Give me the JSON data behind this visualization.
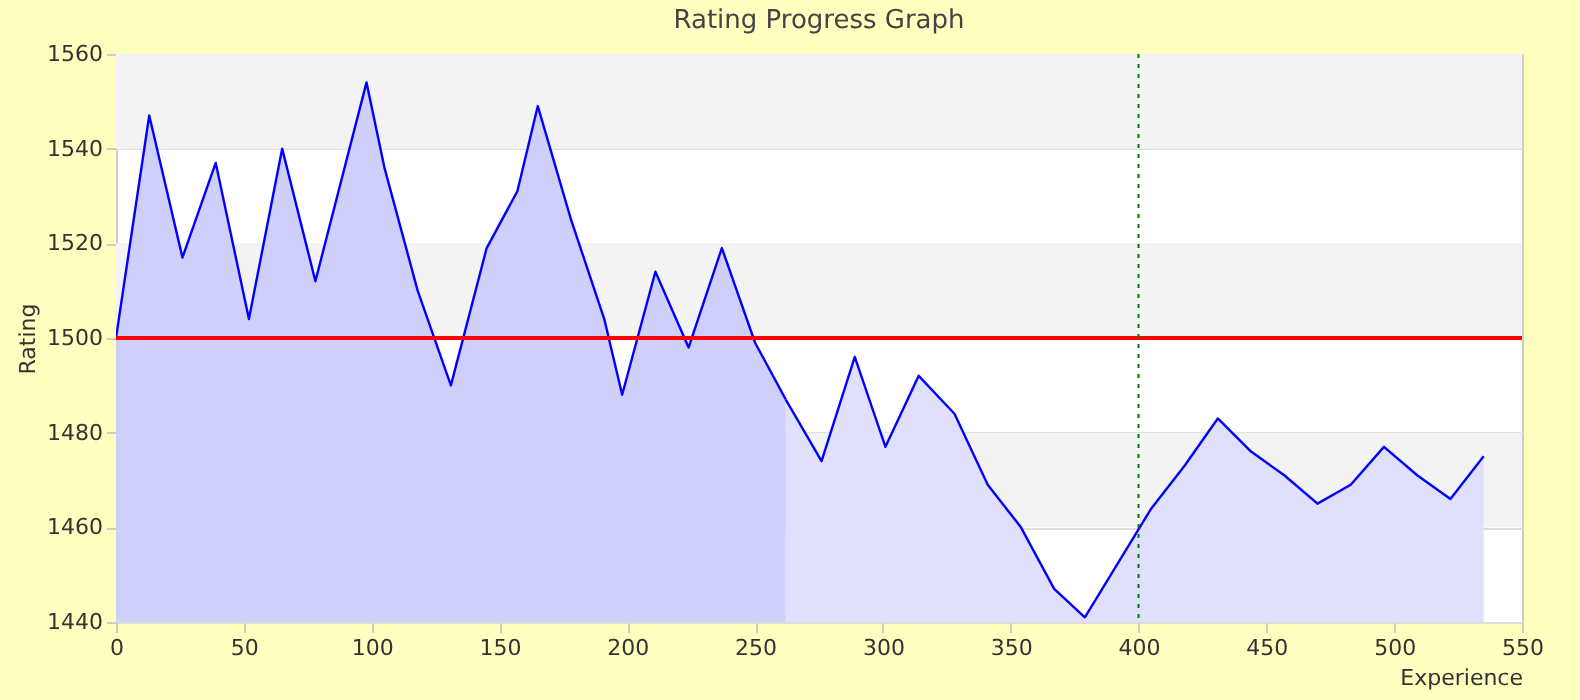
{
  "chart_data": {
    "type": "area",
    "title": "Rating Progress Graph",
    "xlabel": "Experience",
    "ylabel": "Rating",
    "series": [
      {
        "color": "#cfcffc",
        "x": [
          0,
          13,
          26,
          39,
          52,
          65,
          78,
          98,
          105,
          118,
          131,
          145,
          157,
          165,
          178,
          191,
          198,
          211,
          224,
          237,
          250,
          262
        ],
        "values": [
          1500,
          1547,
          1517,
          1537,
          1504,
          1540,
          1512,
          1554,
          1536,
          1510,
          1490,
          1519,
          1531,
          1549,
          1525,
          1504,
          1488,
          1514,
          1498,
          1519,
          1499,
          1487
        ]
      },
      {
        "color": "#e0e0fc",
        "x": [
          262,
          276,
          289,
          301,
          314,
          328,
          341,
          354,
          367,
          379,
          405,
          418,
          431,
          444,
          457,
          470,
          483,
          496,
          509,
          522,
          535
        ],
        "values": [
          1487,
          1474,
          1496,
          1477,
          1492,
          1484,
          1469,
          1460,
          1447,
          1441,
          1464,
          1473,
          1483,
          1476,
          1471,
          1465,
          1469,
          1477,
          1471,
          1466,
          1475
        ]
      }
    ],
    "xlim": [
      0,
      550
    ],
    "xticks": [
      0,
      50,
      100,
      150,
      200,
      250,
      300,
      350,
      400,
      450,
      500,
      550
    ],
    "ylim": [
      1440,
      1560
    ],
    "yticks": [
      1440,
      1460,
      1480,
      1500,
      1520,
      1540,
      1560
    ],
    "grid": "y",
    "legend": false,
    "marker": "none",
    "line_style": "solid",
    "bands": [
      {
        "axis": "y",
        "from": 1540,
        "to": 1560,
        "color": "#f3f3f3"
      },
      {
        "axis": "y",
        "from": 1500,
        "to": 1520,
        "color": "#f3f3f3"
      },
      {
        "axis": "y",
        "from": 1460,
        "to": 1480,
        "color": "#f3f3f3"
      }
    ],
    "ref_lines": [
      {
        "axis": "y",
        "value": 1500,
        "color": "#ff0000",
        "line_style": "solid"
      },
      {
        "axis": "x",
        "value": 400,
        "color": "#007700",
        "line_style": "dotted"
      }
    ]
  }
}
